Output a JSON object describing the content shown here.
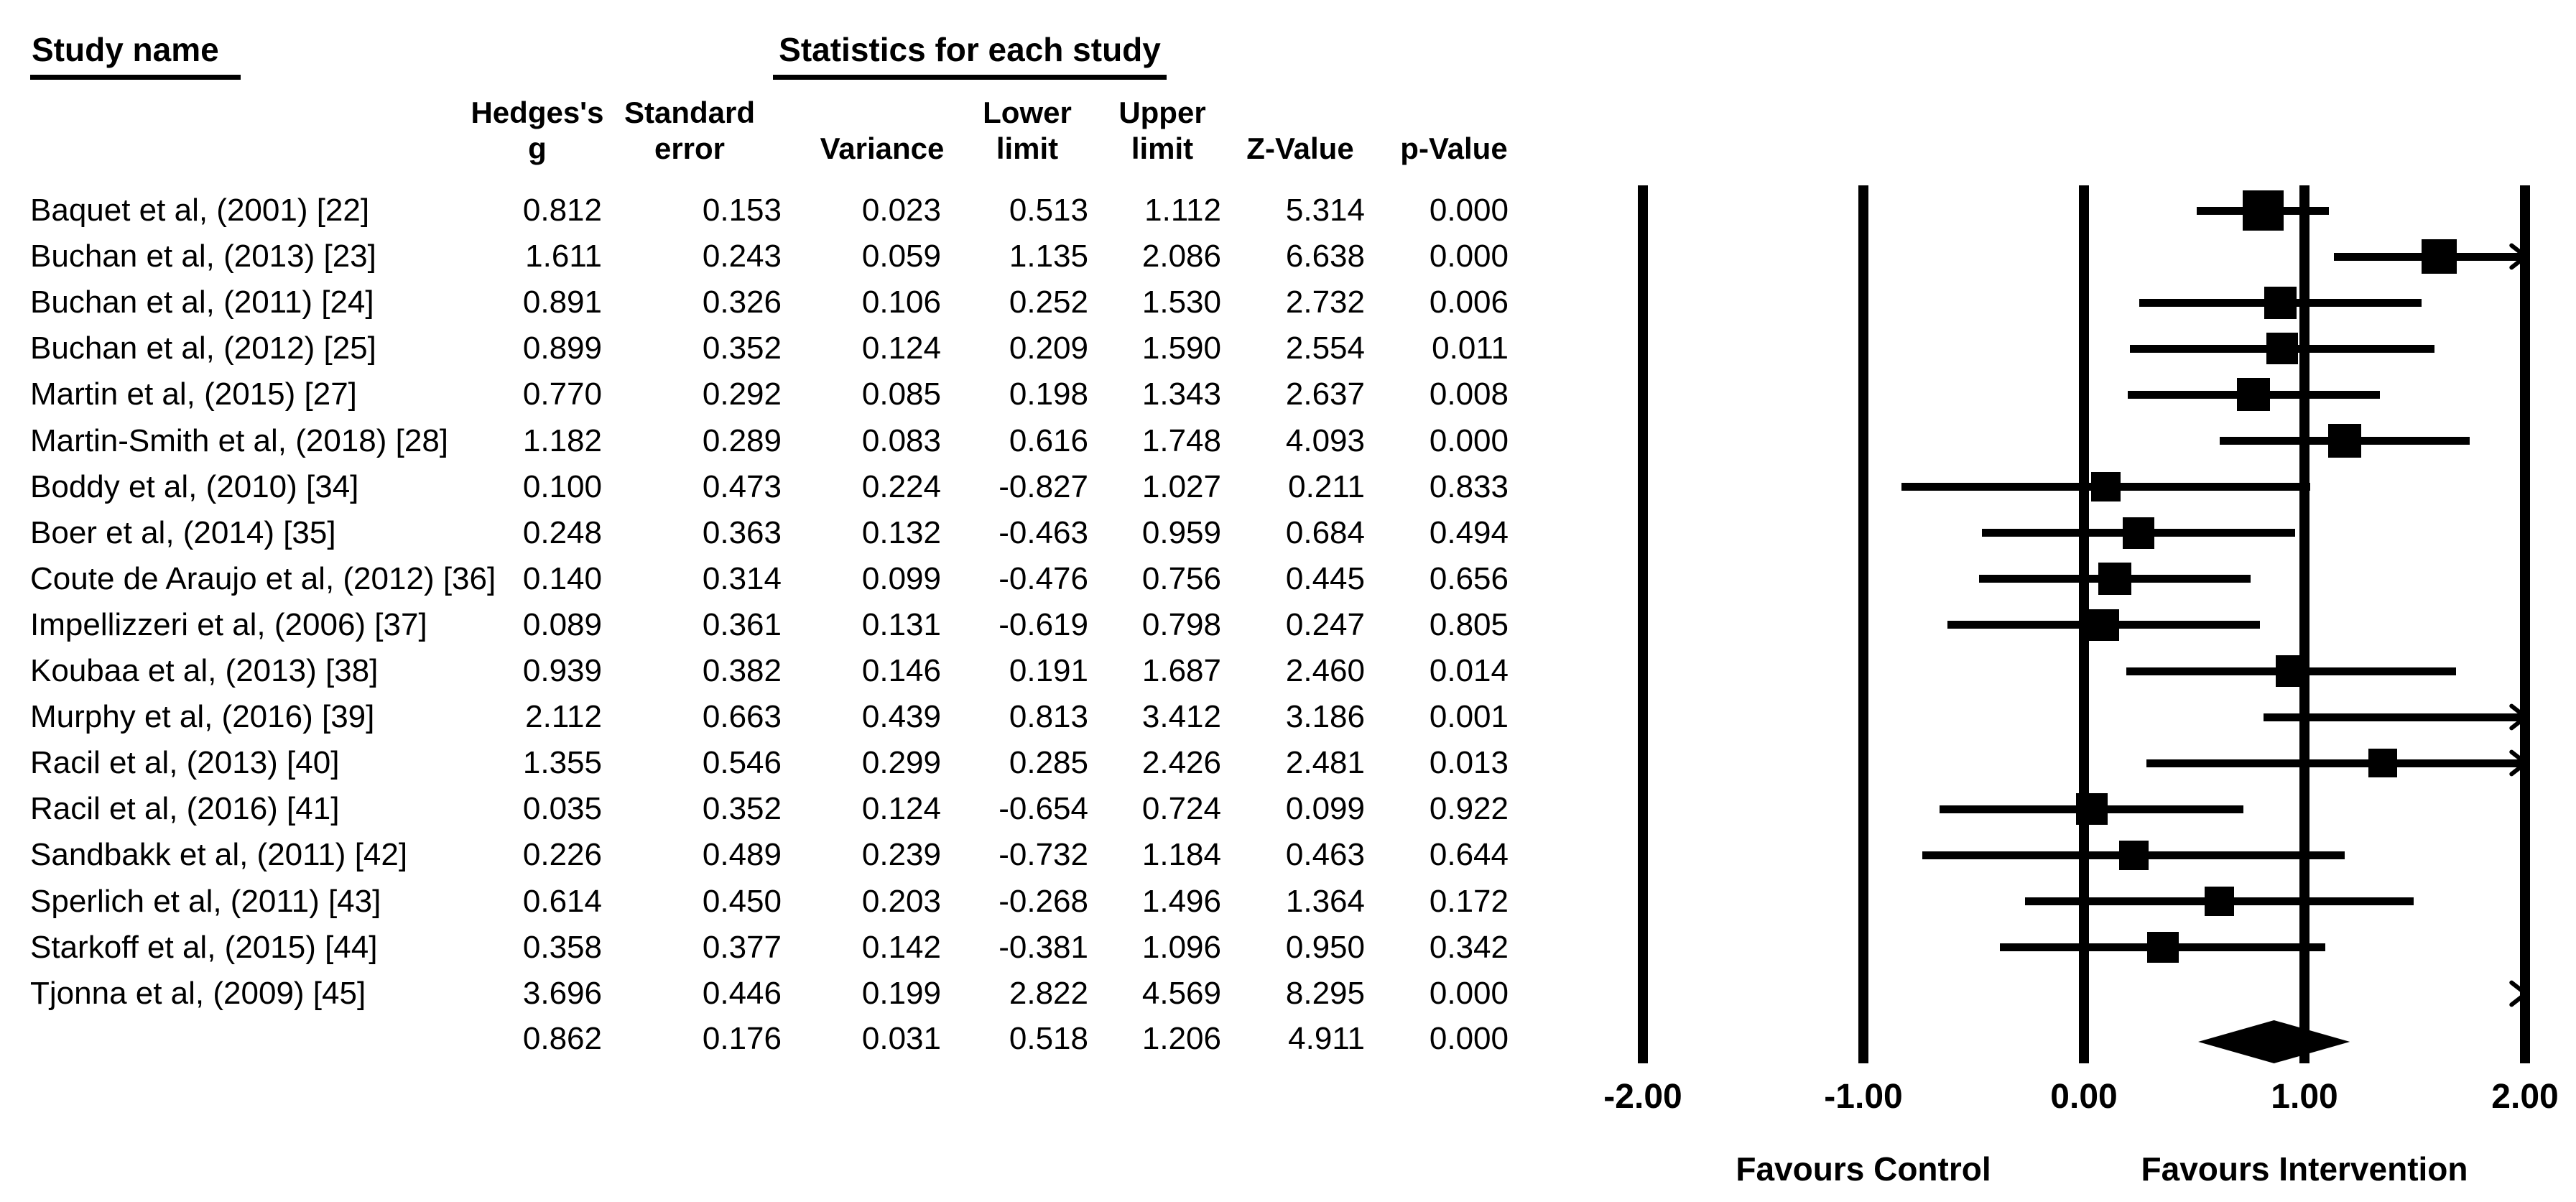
{
  "chart_data": {
    "type": "forest",
    "left_heading": "Study name",
    "stats_heading": "Statistics for each study",
    "columns": [
      {
        "l1": "Hedges's",
        "l2": "g"
      },
      {
        "l1": "Standard",
        "l2": "error"
      },
      {
        "l1": "",
        "l2": "Variance"
      },
      {
        "l1": "Lower",
        "l2": "limit"
      },
      {
        "l1": "Upper",
        "l2": "limit"
      },
      {
        "l1": "",
        "l2": "Z-Value"
      },
      {
        "l1": "",
        "l2": "p-Value"
      }
    ],
    "stat_keys": [
      "hedges_g",
      "standard_error",
      "variance",
      "lower_limit",
      "upper_limit",
      "z_value",
      "p_value"
    ],
    "studies": [
      {
        "name": "Baquet et al, (2001) [22]",
        "stats": [
          "0.812",
          "0.153",
          "0.023",
          "0.513",
          "1.112",
          "5.314",
          "0.000"
        ]
      },
      {
        "name": "Buchan et al, (2013) [23]",
        "stats": [
          "1.611",
          "0.243",
          "0.059",
          "1.135",
          "2.086",
          "6.638",
          "0.000"
        ]
      },
      {
        "name": "Buchan et al, (2011) [24]",
        "stats": [
          "0.891",
          "0.326",
          "0.106",
          "0.252",
          "1.530",
          "2.732",
          "0.006"
        ]
      },
      {
        "name": "Buchan et al, (2012) [25]",
        "stats": [
          "0.899",
          "0.352",
          "0.124",
          "0.209",
          "1.590",
          "2.554",
          "0.011"
        ]
      },
      {
        "name": "Martin et al, (2015) [27]",
        "stats": [
          "0.770",
          "0.292",
          "0.085",
          "0.198",
          "1.343",
          "2.637",
          "0.008"
        ]
      },
      {
        "name": "Martin-Smith et al, (2018) [28]",
        "stats": [
          "1.182",
          "0.289",
          "0.083",
          "0.616",
          "1.748",
          "4.093",
          "0.000"
        ]
      },
      {
        "name": "Boddy et al, (2010) [34]",
        "stats": [
          "0.100",
          "0.473",
          "0.224",
          "-0.827",
          "1.027",
          "0.211",
          "0.833"
        ]
      },
      {
        "name": "Boer et al, (2014) [35]",
        "stats": [
          "0.248",
          "0.363",
          "0.132",
          "-0.463",
          "0.959",
          "0.684",
          "0.494"
        ]
      },
      {
        "name": "Coute de Araujo et al, (2012) [36]",
        "stats": [
          "0.140",
          "0.314",
          "0.099",
          "-0.476",
          "0.756",
          "0.445",
          "0.656"
        ]
      },
      {
        "name": "Impellizzeri et al, (2006) [37]",
        "stats": [
          "0.089",
          "0.361",
          "0.131",
          "-0.619",
          "0.798",
          "0.247",
          "0.805"
        ]
      },
      {
        "name": "Koubaa et al, (2013) [38]",
        "stats": [
          "0.939",
          "0.382",
          "0.146",
          "0.191",
          "1.687",
          "2.460",
          "0.014"
        ]
      },
      {
        "name": "Murphy et al, (2016) [39]",
        "stats": [
          "2.112",
          "0.663",
          "0.439",
          "0.813",
          "3.412",
          "3.186",
          "0.001"
        ]
      },
      {
        "name": "Racil et al, (2013) [40]",
        "stats": [
          "1.355",
          "0.546",
          "0.299",
          "0.285",
          "2.426",
          "2.481",
          "0.013"
        ]
      },
      {
        "name": "Racil et al, (2016) [41]",
        "stats": [
          "0.035",
          "0.352",
          "0.124",
          "-0.654",
          "0.724",
          "0.099",
          "0.922"
        ]
      },
      {
        "name": "Sandbakk et al, (2011) [42]",
        "stats": [
          "0.226",
          "0.489",
          "0.239",
          "-0.732",
          "1.184",
          "0.463",
          "0.644"
        ]
      },
      {
        "name": "Sperlich et al, (2011) [43]",
        "stats": [
          "0.614",
          "0.450",
          "0.203",
          "-0.268",
          "1.496",
          "1.364",
          "0.172"
        ]
      },
      {
        "name": "Starkoff et al, (2015) [44]",
        "stats": [
          "0.358",
          "0.377",
          "0.142",
          "-0.381",
          "1.096",
          "0.950",
          "0.342"
        ]
      },
      {
        "name": "Tjonna et al, (2009) [45]",
        "stats": [
          "3.696",
          "0.446",
          "0.199",
          "2.822",
          "4.569",
          "8.295",
          "0.000"
        ]
      }
    ],
    "overall": {
      "stats": [
        "0.862",
        "0.176",
        "0.031",
        "0.518",
        "1.206",
        "4.911",
        "0.000"
      ]
    },
    "x_axis": {
      "xlim": [
        -2,
        2
      ],
      "ticks": [
        {
          "value": -2,
          "label": "-2.00"
        },
        {
          "value": -1,
          "label": "-1.00"
        },
        {
          "value": 0,
          "label": "0.00"
        },
        {
          "value": 1,
          "label": "1.00"
        },
        {
          "value": 2,
          "label": "2.00"
        }
      ]
    },
    "favours_left": "Favours Control",
    "favours_right": "Favours Intervention",
    "colors": {
      "ink": "#000000",
      "background": "#ffffff"
    }
  }
}
